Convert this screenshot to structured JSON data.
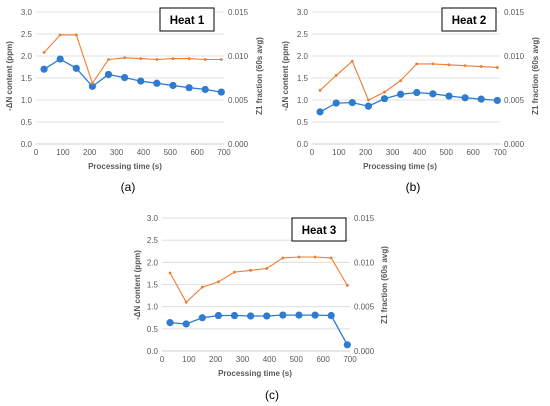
{
  "colors": {
    "primary": "#2E7BCF",
    "secondary": "#ED7D31",
    "grid": "#D9D9D9",
    "text": "#595959"
  },
  "chart_data": [
    {
      "type": "line",
      "title": "Heat 1",
      "panel_label": "(a)",
      "xlabel": "Processing time (s)",
      "ylabel": "-ΔN content (ppm)",
      "y2label": "Z1 fraction (60s avg)",
      "xlim": [
        0,
        700
      ],
      "ylim": [
        0,
        3.0
      ],
      "y2lim": [
        0,
        0.015
      ],
      "xticks": [
        "0",
        "100",
        "200",
        "300",
        "400",
        "500",
        "600",
        "700"
      ],
      "yticks": [
        "0.0",
        "0.5",
        "1.0",
        "1.5",
        "2.0",
        "2.5",
        "3.0"
      ],
      "y2ticks": [
        "0.000",
        "0.005",
        "0.010",
        "0.015"
      ],
      "grid": true,
      "series": [
        {
          "axis": "left",
          "marker": "circle",
          "x": [
            30,
            90,
            150,
            210,
            270,
            330,
            390,
            450,
            510,
            570,
            630,
            690
          ],
          "values": [
            1.7,
            1.93,
            1.72,
            1.31,
            1.58,
            1.51,
            1.43,
            1.38,
            1.33,
            1.28,
            1.24,
            1.18
          ]
        },
        {
          "axis": "right",
          "marker": "small",
          "x": [
            30,
            90,
            150,
            210,
            270,
            330,
            390,
            450,
            510,
            570,
            630,
            690
          ],
          "values": [
            0.0104,
            0.0124,
            0.0124,
            0.0069,
            0.0096,
            0.0098,
            0.0097,
            0.0096,
            0.0097,
            0.0097,
            0.0096,
            0.0096
          ]
        }
      ]
    },
    {
      "type": "line",
      "title": "Heat 2",
      "panel_label": "(b)",
      "xlabel": "Processing time (s)",
      "ylabel": "-ΔN content (ppm)",
      "y2label": "Z1 fraction (60s avg)",
      "xlim": [
        0,
        700
      ],
      "ylim": [
        0,
        3.0
      ],
      "y2lim": [
        0,
        0.015
      ],
      "xticks": [
        "0",
        "100",
        "200",
        "300",
        "400",
        "500",
        "600",
        "700"
      ],
      "yticks": [
        "0.0",
        "0.5",
        "1.0",
        "1.5",
        "2.0",
        "2.5",
        "3.0"
      ],
      "y2ticks": [
        "0.000",
        "0.005",
        "0.010",
        "0.015"
      ],
      "grid": true,
      "series": [
        {
          "axis": "left",
          "marker": "circle",
          "x": [
            30,
            90,
            150,
            210,
            270,
            330,
            390,
            450,
            510,
            570,
            630,
            690
          ],
          "values": [
            0.73,
            0.93,
            0.94,
            0.86,
            1.03,
            1.13,
            1.17,
            1.14,
            1.09,
            1.05,
            1.02,
            0.99
          ]
        },
        {
          "axis": "right",
          "marker": "small",
          "x": [
            30,
            90,
            150,
            210,
            270,
            330,
            390,
            450,
            510,
            570,
            630,
            690
          ],
          "values": [
            0.0061,
            0.0078,
            0.0094,
            0.005,
            0.0059,
            0.0072,
            0.0091,
            0.0091,
            0.009,
            0.0089,
            0.0088,
            0.0087
          ]
        }
      ]
    },
    {
      "type": "line",
      "title": "Heat 3",
      "panel_label": "(c)",
      "xlabel": "Processing time (s)",
      "ylabel": "-ΔN content (ppm)",
      "y2label": "Z1 fraction (60s avg)",
      "xlim": [
        0,
        700
      ],
      "ylim": [
        0,
        3.0
      ],
      "y2lim": [
        0,
        0.015
      ],
      "xticks": [
        "0",
        "100",
        "200",
        "300",
        "400",
        "500",
        "600",
        "700"
      ],
      "yticks": [
        "0.0",
        "0.5",
        "1.0",
        "1.5",
        "2.0",
        "2.5",
        "3.0"
      ],
      "y2ticks": [
        "0.000",
        "0.005",
        "0.010",
        "0.015"
      ],
      "grid": true,
      "series": [
        {
          "axis": "left",
          "marker": "circle",
          "x": [
            30,
            90,
            150,
            210,
            270,
            330,
            390,
            450,
            510,
            570,
            630,
            690
          ],
          "values": [
            0.64,
            0.61,
            0.75,
            0.8,
            0.8,
            0.79,
            0.79,
            0.81,
            0.81,
            0.81,
            0.8,
            0.14
          ]
        },
        {
          "axis": "right",
          "marker": "small",
          "x": [
            30,
            90,
            150,
            210,
            270,
            330,
            390,
            450,
            510,
            570,
            630,
            690
          ],
          "values": [
            0.0088,
            0.0055,
            0.0072,
            0.0078,
            0.0089,
            0.0091,
            0.0093,
            0.0105,
            0.0106,
            0.0106,
            0.0105,
            0.0074
          ]
        }
      ]
    }
  ]
}
